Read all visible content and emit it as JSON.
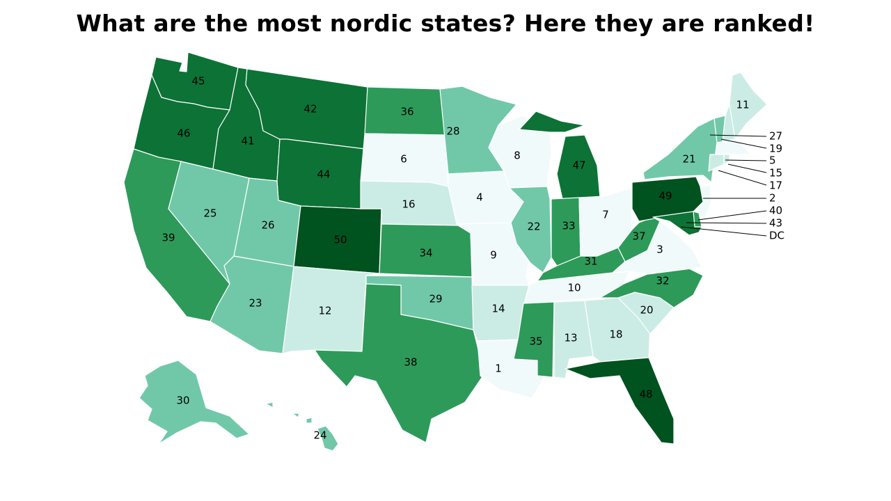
{
  "title": "What are the most nordic states? Here they are ranked!",
  "colors": {
    "r1_10": "#f1fafb",
    "r11_20": "#cbece4",
    "r21_30": "#71c8a9",
    "r31_40": "#2d9a5a",
    "r41_47": "#0c7236",
    "r48_50": "#00521f"
  },
  "states": {
    "WA": "45",
    "OR": "46",
    "CA": "39",
    "ID": "41",
    "NV": "25",
    "MT": "42",
    "WY": "44",
    "UT": "26",
    "AZ": "23",
    "CO": "50",
    "NM": "12",
    "ND": "36",
    "SD": "6",
    "NE": "16",
    "KS": "34",
    "OK": "29",
    "TX": "38",
    "MN": "28",
    "IA": "4",
    "MO": "9",
    "AR": "14",
    "LA": "1",
    "WI": "8",
    "IL": "22",
    "MI": "47",
    "IN": "33",
    "OH": "7",
    "KY": "31",
    "TN": "10",
    "MS": "35",
    "AL": "13",
    "GA": "18",
    "FL": "48",
    "SC": "20",
    "NC": "32",
    "VA": "3",
    "WV": "37",
    "PA": "49",
    "NY": "21",
    "ME": "11",
    "AK": "30",
    "HI": "24",
    "VT": "27",
    "NH": "19",
    "MA": "5",
    "RI": "15",
    "CT": "17",
    "NJ": "2",
    "DE": "40",
    "MD": "43",
    "DC": "DC"
  }
}
